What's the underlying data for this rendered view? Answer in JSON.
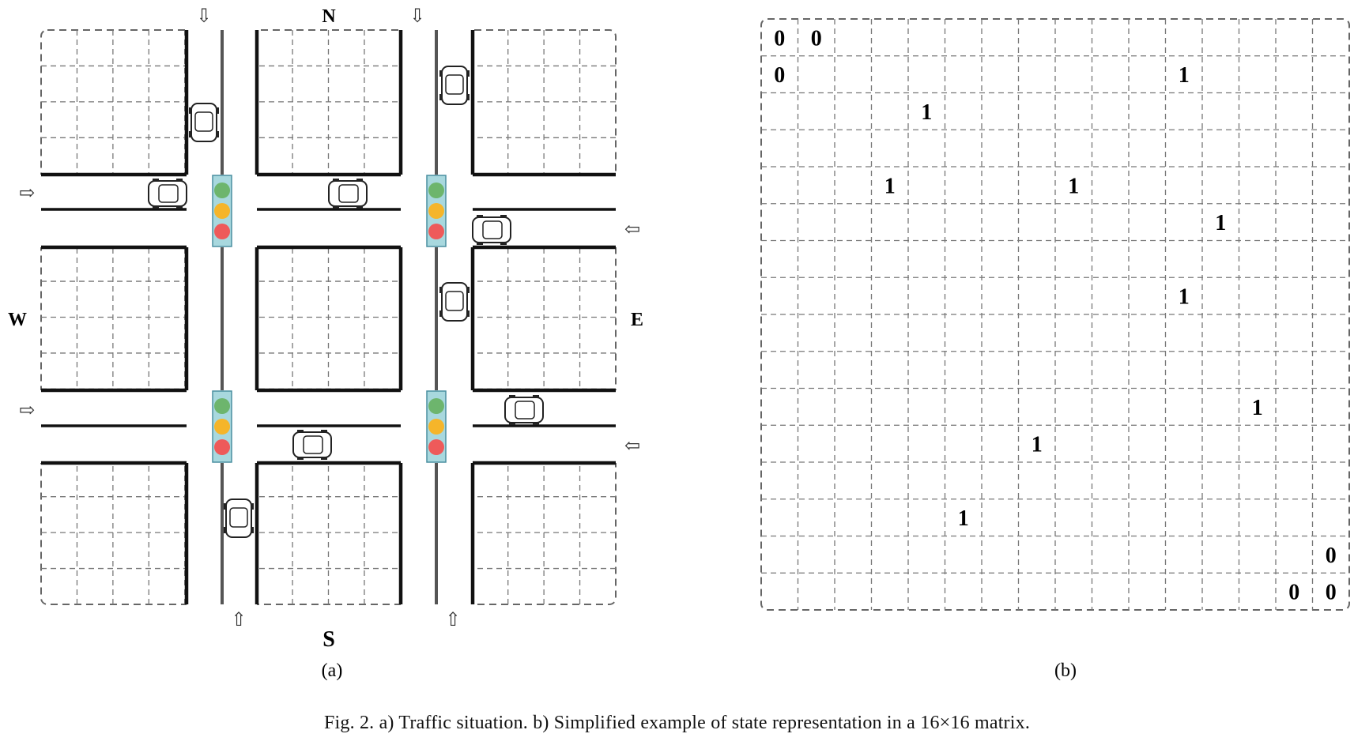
{
  "panel_a": {
    "label": "(a)",
    "directions": {
      "north": "N",
      "south": "S",
      "west": "W",
      "east": "E"
    },
    "grid_cols": 16,
    "grid_rows": 16,
    "light_colors": [
      "#6db56d",
      "#f5b52a",
      "#ee5a5a"
    ],
    "light_box_color": "#a8d8de",
    "arrows": {
      "top": [
        "⇩",
        "⇩"
      ],
      "bottom": [
        "⇧",
        "⇧"
      ],
      "left": [
        "⇨",
        "⇨"
      ],
      "right": [
        "⇦",
        "⇦"
      ]
    }
  },
  "panel_b": {
    "label": "(b)",
    "grid_cols": 16,
    "grid_rows": 16,
    "entries": [
      {
        "row": 0,
        "col": 0,
        "value": "0"
      },
      {
        "row": 0,
        "col": 1,
        "value": "0"
      },
      {
        "row": 1,
        "col": 0,
        "value": "0"
      },
      {
        "row": 1,
        "col": 11,
        "value": "1"
      },
      {
        "row": 2,
        "col": 4,
        "value": "1"
      },
      {
        "row": 4,
        "col": 3,
        "value": "1"
      },
      {
        "row": 4,
        "col": 8,
        "value": "1"
      },
      {
        "row": 5,
        "col": 12,
        "value": "1"
      },
      {
        "row": 7,
        "col": 11,
        "value": "1"
      },
      {
        "row": 10,
        "col": 13,
        "value": "1"
      },
      {
        "row": 11,
        "col": 7,
        "value": "1"
      },
      {
        "row": 13,
        "col": 5,
        "value": "1"
      },
      {
        "row": 14,
        "col": 15,
        "value": "0"
      },
      {
        "row": 15,
        "col": 14,
        "value": "0"
      },
      {
        "row": 15,
        "col": 15,
        "value": "0"
      }
    ]
  },
  "caption": "Fig. 2.  a) Traffic situation. b) Simplified example of state representation in a 16×16 matrix."
}
